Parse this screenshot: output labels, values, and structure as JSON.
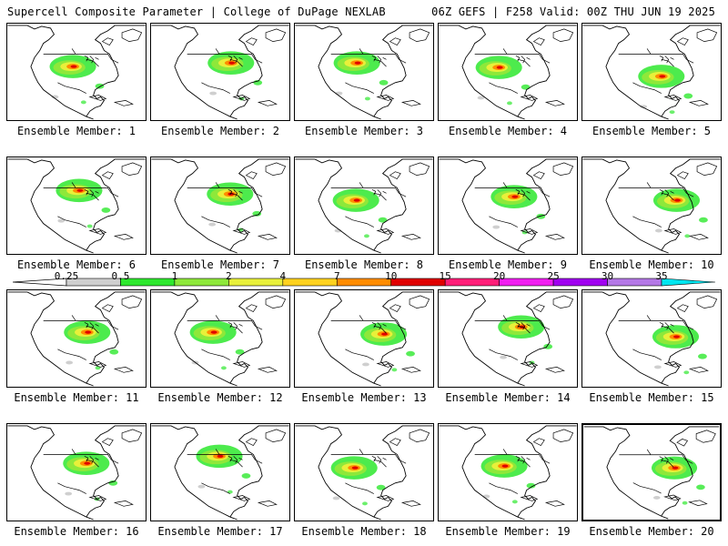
{
  "header": {
    "title": "Supercell Composite Parameter | College of DuPage NEXLAB",
    "run_info": "06Z GEFS | F258 Valid: 00Z THU JUN 19 2025"
  },
  "panels": [
    {
      "label": "Ensemble Member: 1",
      "region": "plains"
    },
    {
      "label": "Ensemble Member: 2",
      "region": "midwest"
    },
    {
      "label": "Ensemble Member: 3",
      "region": "plains"
    },
    {
      "label": "Ensemble Member: 4",
      "region": "plains"
    },
    {
      "label": "Ensemble Member: 5",
      "region": "south"
    },
    {
      "label": "Ensemble Member: 6",
      "region": "north"
    },
    {
      "label": "Ensemble Member: 7",
      "region": "midwest"
    },
    {
      "label": "Ensemble Member: 8",
      "region": "plains"
    },
    {
      "label": "Ensemble Member: 9",
      "region": "midwest"
    },
    {
      "label": "Ensemble Member: 10",
      "region": "east"
    },
    {
      "label": "Ensemble Member: 11",
      "region": "midwest"
    },
    {
      "label": "Ensemble Member: 12",
      "region": "plains"
    },
    {
      "label": "Ensemble Member: 13",
      "region": "east"
    },
    {
      "label": "Ensemble Member: 14",
      "region": "midwest"
    },
    {
      "label": "Ensemble Member: 15",
      "region": "east"
    },
    {
      "label": "Ensemble Member: 16",
      "region": "midwest"
    },
    {
      "label": "Ensemble Member: 17",
      "region": "north"
    },
    {
      "label": "Ensemble Member: 18",
      "region": "plains"
    },
    {
      "label": "Ensemble Member: 19",
      "region": "plains"
    },
    {
      "label": "Ensemble Member: 20",
      "region": "east",
      "highlighted": true
    }
  ],
  "colorbar": {
    "labels": [
      "0.25",
      "0.5",
      "1",
      "2",
      "4",
      "7",
      "10",
      "15",
      "20",
      "25",
      "30",
      "35"
    ],
    "colors": [
      "#cfcfcf",
      "#2ee82e",
      "#8ee83a",
      "#e8f03a",
      "#ffd21e",
      "#ff8c00",
      "#e00000",
      "#ff1e78",
      "#f01ef0",
      "#a000f0",
      "#b478e6",
      "#00e6f0"
    ],
    "low_arrow_color": "#ffffff"
  }
}
